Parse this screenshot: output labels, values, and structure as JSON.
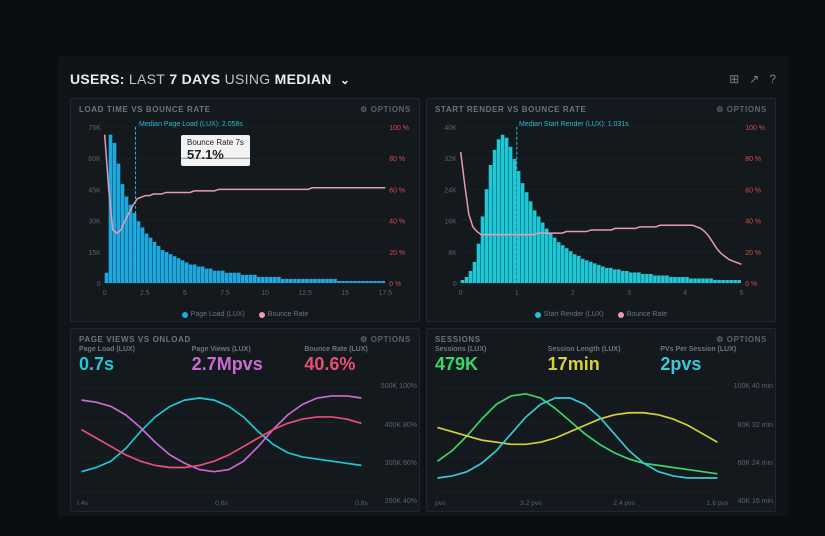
{
  "header": {
    "prefix": "USERS:",
    "range": "LAST",
    "days": "7 DAYS",
    "using": "USING",
    "agg": "MEDIAN"
  },
  "panels": {
    "loadtime": {
      "title": "LOAD TIME VS BOUNCE RATE",
      "options": "OPTIONS",
      "median_label": "Median Page Load (LUX): 2.058s",
      "tooltip_label": "Bounce Rate 7s",
      "tooltip_value": "57.1%",
      "y_left_max": "75K",
      "y_left_ticks": [
        "75K",
        "60K",
        "45K",
        "30K",
        "15K",
        "0"
      ],
      "y_right_ticks": [
        "100 %",
        "80 %",
        "60 %",
        "40 %",
        "20 %",
        "0 %"
      ],
      "x_ticks": [
        "0",
        "2.5",
        "5",
        "7.5",
        "10",
        "12.5",
        "15",
        "17.5"
      ],
      "series_bar": {
        "name": "Page Load (LUX)",
        "color": "#1fa8e0"
      },
      "series_line": {
        "name": "Bounce Rate",
        "color": "#e89bb8"
      },
      "bars": [
        5,
        72,
        68,
        58,
        48,
        42,
        38,
        34,
        30,
        27,
        24,
        22,
        20,
        18,
        16,
        15,
        14,
        13,
        12,
        11,
        10,
        9,
        9,
        8,
        8,
        7,
        7,
        6,
        6,
        6,
        5,
        5,
        5,
        5,
        4,
        4,
        4,
        4,
        3,
        3,
        3,
        3,
        3,
        3,
        2,
        2,
        2,
        2,
        2,
        2,
        2,
        2,
        2,
        2,
        2,
        2,
        2,
        2,
        1,
        1,
        1,
        1,
        1,
        1,
        1,
        1,
        1,
        1,
        1,
        1
      ],
      "line": [
        95,
        60,
        34,
        32,
        34,
        40,
        45,
        50,
        54,
        55,
        56,
        56,
        57,
        57,
        57,
        58,
        58,
        58,
        58,
        58,
        58,
        58,
        59,
        59,
        59,
        59,
        59,
        59,
        60,
        60,
        60,
        60,
        60,
        60,
        60,
        60,
        60,
        60,
        60,
        60,
        60,
        60,
        60,
        60,
        60,
        60,
        60,
        60,
        60,
        60,
        60,
        61,
        61,
        61,
        61,
        61,
        61,
        61,
        61,
        61,
        61,
        61,
        61,
        61,
        61,
        61,
        61,
        61,
        61,
        61
      ]
    },
    "startrender": {
      "title": "START RENDER VS BOUNCE RATE",
      "options": "OPTIONS",
      "median_label": "Median Start Render (LUX): 1.031s",
      "y_left_ticks": [
        "40K",
        "32K",
        "24K",
        "16K",
        "8K",
        "0"
      ],
      "y_right_ticks": [
        "100 %",
        "80 %",
        "60 %",
        "40 %",
        "20 %",
        "0 %"
      ],
      "x_ticks": [
        "0",
        "1",
        "2",
        "3",
        "4",
        "5"
      ],
      "series_bar": {
        "name": "Start Render (LUX)",
        "color": "#1fc8d6"
      },
      "series_line": {
        "name": "Bounce Rate",
        "color": "#e89bb8"
      },
      "bars": [
        2,
        4,
        8,
        14,
        26,
        44,
        62,
        78,
        88,
        95,
        98,
        96,
        90,
        82,
        74,
        66,
        60,
        54,
        48,
        44,
        40,
        36,
        33,
        30,
        27,
        25,
        23,
        21,
        19,
        18,
        16,
        15,
        14,
        13,
        12,
        11,
        10,
        10,
        9,
        9,
        8,
        8,
        7,
        7,
        7,
        6,
        6,
        6,
        5,
        5,
        5,
        5,
        4,
        4,
        4,
        4,
        4,
        3,
        3,
        3,
        3,
        3,
        3,
        2,
        2,
        2,
        2,
        2,
        2,
        2
      ],
      "line": [
        84,
        63,
        44,
        36,
        33,
        31,
        31,
        31,
        31,
        31,
        31,
        31,
        31,
        31,
        31,
        31,
        31,
        31,
        31,
        32,
        32,
        32,
        32,
        32,
        32,
        32,
        33,
        33,
        33,
        33,
        33,
        33,
        34,
        34,
        34,
        34,
        34,
        34,
        35,
        35,
        35,
        35,
        35,
        35,
        36,
        36,
        36,
        36,
        36,
        37,
        37,
        37,
        37,
        37,
        37,
        37,
        37,
        37,
        36,
        35,
        33,
        30,
        26,
        22,
        19,
        17,
        15,
        14,
        13,
        12
      ]
    },
    "pageviews": {
      "title": "PAGE VIEWS VS ONLOAD",
      "options": "OPTIONS",
      "metrics": [
        {
          "label": "Page Load (LUX)",
          "value": "0.7s",
          "color": "#1fc8d6"
        },
        {
          "label": "Page Views (LUX)",
          "value": "2.7Mpvs",
          "color": "#c96bd3"
        },
        {
          "label": "Bounce Rate (LUX)",
          "value": "40.6%",
          "color": "#e84f78"
        }
      ],
      "y_right_ticks": [
        "500K 100%",
        "400K 80%",
        "300K 60%",
        "200K 40%"
      ],
      "x_ticks": [
        "0.4s",
        "0.6s",
        "0.8s"
      ],
      "lines": {
        "teal": [
          20,
          24,
          30,
          42,
          58,
          72,
          82,
          88,
          90,
          88,
          82,
          72,
          58,
          46,
          38,
          34,
          32,
          30,
          28,
          26
        ],
        "purple": [
          88,
          86,
          82,
          74,
          62,
          48,
          36,
          28,
          22,
          20,
          22,
          30,
          44,
          60,
          74,
          84,
          90,
          92,
          92,
          90
        ],
        "pink": [
          60,
          52,
          44,
          36,
          30,
          26,
          24,
          24,
          26,
          30,
          36,
          44,
          52,
          60,
          66,
          70,
          72,
          72,
          70,
          66
        ]
      }
    },
    "sessions": {
      "title": "SESSIONS",
      "options": "OPTIONS",
      "metrics": [
        {
          "label": "Sessions (LUX)",
          "value": "479K",
          "color": "#3bd66a"
        },
        {
          "label": "Session Length (LUX)",
          "value": "17min",
          "color": "#d6d03b"
        },
        {
          "label": "PVs Per Session (LUX)",
          "value": "2pvs",
          "color": "#3bc8d6"
        }
      ],
      "y_right_ticks": [
        "100K 40 min",
        "80K 32 min",
        "60K 24 min",
        "40K 16 min"
      ],
      "x_ticks": [
        "4 pvs",
        "3.2 pvs",
        "2.4 pvs",
        "1.6 pvs"
      ],
      "lines": {
        "green": [
          30,
          40,
          54,
          70,
          84,
          92,
          94,
          90,
          80,
          68,
          56,
          46,
          38,
          32,
          28,
          26,
          24,
          22,
          20,
          18
        ],
        "yellow": [
          62,
          58,
          54,
          50,
          48,
          46,
          46,
          48,
          52,
          58,
          64,
          70,
          74,
          76,
          76,
          74,
          70,
          64,
          56,
          48
        ],
        "teal": [
          14,
          16,
          20,
          28,
          40,
          56,
          72,
          84,
          90,
          90,
          84,
          72,
          56,
          40,
          28,
          20,
          16,
          14,
          14,
          14
        ]
      }
    }
  },
  "colors": {
    "bg": "#101418",
    "panel": "#14191e",
    "grid": "#1f2830",
    "text_dim": "#6b747d",
    "axis_red": "#d94a4a"
  }
}
